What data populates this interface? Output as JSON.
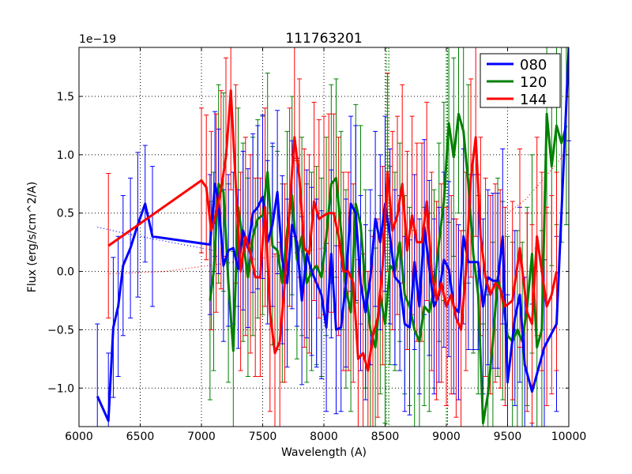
{
  "chart_data": {
    "type": "line",
    "title": "111763201",
    "xlabel": "Wavelength (A)",
    "ylabel": "Flux (erg/s/cm^2/A)",
    "offset_text": "1e−19",
    "xlim": [
      6000,
      10000
    ],
    "ylim": [
      -1.33,
      1.92
    ],
    "x_ticks": [
      6000,
      6500,
      7000,
      7500,
      8000,
      8500,
      9000,
      9500,
      10000
    ],
    "x_tick_labels": [
      "6000",
      "6500",
      "7000",
      "7500",
      "8000",
      "8500",
      "9000",
      "9500",
      "10000"
    ],
    "y_ticks": [
      -1.0,
      -0.5,
      0.0,
      0.5,
      1.0,
      1.5
    ],
    "y_tick_labels": [
      "−1.0",
      "−0.5",
      "0.0",
      "0.5",
      "1.0",
      "1.5"
    ],
    "grid": true,
    "legend_position": "top-right",
    "series": [
      {
        "name": "080",
        "color": "#0000ff",
        "x": [
          6150,
          6240,
          6280,
          6320,
          6360,
          6420,
          6480,
          6540,
          6600,
          7070,
          7110,
          7140,
          7180,
          7220,
          7260,
          7300,
          7340,
          7380,
          7420,
          7460,
          7500,
          7540,
          7580,
          7620,
          7660,
          7700,
          7740,
          7780,
          7820,
          7860,
          7900,
          7940,
          7980,
          8020,
          8060,
          8100,
          8140,
          8180,
          8220,
          8260,
          8300,
          8340,
          8380,
          8420,
          8460,
          8500,
          8540,
          8580,
          8620,
          8660,
          8700,
          8740,
          8780,
          8820,
          8860,
          8900,
          8940,
          8980,
          9020,
          9060,
          9100,
          9140,
          9180,
          9220,
          9260,
          9300,
          9340,
          9380,
          9420,
          9460,
          9500,
          9560,
          9600,
          9640,
          9700,
          9800,
          9900,
          10000
        ],
        "y": [
          -1.07,
          -1.28,
          -0.48,
          -0.3,
          0.05,
          0.2,
          0.4,
          0.58,
          0.3,
          0.23,
          0.75,
          0.6,
          0.05,
          0.18,
          0.2,
          0.02,
          0.35,
          0.2,
          0.5,
          0.55,
          0.64,
          0.25,
          0.4,
          0.68,
          0.1,
          -0.1,
          0.4,
          0.25,
          -0.25,
          0.15,
          0.0,
          -0.1,
          -0.2,
          -0.48,
          0.15,
          -0.5,
          -0.48,
          -0.1,
          0.58,
          0.5,
          -0.1,
          -0.35,
          -0.05,
          0.45,
          0.25,
          0.58,
          0.3,
          -0.05,
          -0.1,
          -0.45,
          -0.48,
          0.08,
          -0.3,
          0.38,
          0.03,
          -0.3,
          -0.2,
          0.1,
          0.02,
          -0.3,
          -0.35,
          0.3,
          0.08,
          0.08,
          0.08,
          -0.3,
          -0.05,
          -0.08,
          -0.08,
          0.3,
          -0.95,
          -0.4,
          -0.2,
          -0.8,
          -1.03,
          -0.65,
          -0.45,
          1.92
        ],
        "err": [
          0.62,
          0.58,
          0.6,
          0.6,
          0.6,
          0.6,
          0.62,
          0.5,
          0.6,
          0.6,
          0.62,
          0.62,
          0.65,
          0.65,
          0.65,
          0.68,
          0.68,
          0.68,
          0.68,
          0.7,
          0.7,
          0.7,
          0.7,
          0.7,
          0.72,
          0.72,
          0.72,
          0.72,
          0.72,
          0.72,
          0.72,
          0.72,
          0.72,
          0.72,
          0.72,
          0.72,
          0.72,
          0.72,
          0.75,
          0.75,
          0.75,
          0.75,
          0.75,
          0.75,
          0.75,
          0.75,
          0.75,
          0.75,
          0.75,
          0.75,
          0.75,
          0.75,
          0.75,
          0.75,
          0.75,
          0.75,
          0.75,
          0.75,
          0.75,
          0.75,
          0.75,
          0.75,
          0.75,
          0.75,
          0.75,
          0.75,
          0.75,
          0.75,
          0.75,
          0.75,
          0.75,
          0.75,
          0.75,
          0.75,
          0.75,
          0.75,
          0.75,
          0.8
        ]
      },
      {
        "name": "120",
        "color": "#008000",
        "x": [
          7070,
          7100,
          7140,
          7180,
          7220,
          7260,
          7300,
          7340,
          7380,
          7420,
          7460,
          7500,
          7540,
          7580,
          7620,
          7660,
          7700,
          7740,
          7780,
          7820,
          7860,
          7900,
          7940,
          7980,
          8020,
          8060,
          8100,
          8140,
          8180,
          8220,
          8260,
          8300,
          8340,
          8380,
          8420,
          8460,
          8500,
          8540,
          8580,
          8620,
          8660,
          8700,
          8740,
          8780,
          8820,
          8860,
          8900,
          8940,
          8980,
          9020,
          9060,
          9100,
          9140,
          9180,
          9220,
          9260,
          9300,
          9340,
          9380,
          9420,
          9460,
          9500,
          9540,
          9580,
          9620,
          9660,
          9700,
          9740,
          9780,
          9820,
          9860,
          9900,
          9940,
          9980
        ],
        "y": [
          -0.25,
          0.0,
          0.75,
          0.68,
          -0.1,
          -0.68,
          0.55,
          0.25,
          -0.05,
          0.3,
          0.45,
          0.48,
          0.85,
          0.22,
          0.18,
          -0.1,
          0.35,
          0.65,
          0.1,
          0.3,
          -0.1,
          0.0,
          0.05,
          -0.05,
          0.3,
          0.75,
          0.8,
          0.35,
          -0.15,
          -0.35,
          0.58,
          0.4,
          -0.15,
          -0.5,
          -0.65,
          -0.2,
          -0.45,
          0.05,
          0.0,
          0.25,
          -0.2,
          -0.3,
          -0.5,
          -0.6,
          -0.3,
          -0.35,
          -0.15,
          0.25,
          0.6,
          1.27,
          0.98,
          1.35,
          1.2,
          0.75,
          0.15,
          -0.2,
          -1.3,
          -1.05,
          -0.6,
          -0.05,
          -0.25,
          -0.55,
          -0.6,
          -0.5,
          -0.6,
          -0.3,
          0.15,
          -0.65,
          -0.5,
          1.35,
          0.9,
          1.25,
          1.1,
          1.25
        ],
        "err": [
          0.85,
          0.85,
          0.85,
          0.85,
          0.85,
          0.85,
          0.85,
          0.85,
          0.85,
          0.85,
          0.85,
          0.85,
          0.85,
          0.85,
          0.85,
          0.85,
          0.85,
          0.85,
          0.85,
          0.85,
          0.85,
          0.85,
          0.85,
          0.85,
          0.85,
          0.85,
          0.85,
          0.85,
          0.85,
          0.85,
          0.85,
          0.85,
          0.85,
          0.85,
          0.85,
          0.85,
          0.85,
          0.85,
          0.85,
          0.85,
          0.85,
          0.85,
          0.85,
          0.85,
          0.85,
          0.85,
          0.85,
          0.85,
          0.85,
          0.85,
          0.85,
          0.85,
          0.85,
          0.85,
          0.85,
          0.85,
          0.85,
          0.85,
          0.85,
          0.85,
          0.85,
          0.85,
          0.85,
          0.85,
          0.85,
          0.85,
          0.85,
          0.85,
          0.85,
          0.85,
          0.85,
          0.85,
          0.85,
          0.85
        ]
      },
      {
        "name": "144",
        "color": "#ff0000",
        "x": [
          6240,
          7000,
          7040,
          7080,
          7120,
          7160,
          7200,
          7240,
          7280,
          7320,
          7360,
          7400,
          7440,
          7480,
          7520,
          7560,
          7600,
          7640,
          7680,
          7720,
          7760,
          7800,
          7840,
          7880,
          7920,
          7960,
          8000,
          8040,
          8080,
          8120,
          8160,
          8200,
          8240,
          8280,
          8320,
          8360,
          8400,
          8440,
          8480,
          8520,
          8560,
          8600,
          8640,
          8680,
          8720,
          8760,
          8800,
          8840,
          8880,
          8920,
          8960,
          9000,
          9040,
          9080,
          9120,
          9160,
          9200,
          9240,
          9280,
          9320,
          9360,
          9400,
          9440,
          9480,
          9540,
          9600,
          9660,
          9700,
          9740,
          9780,
          9820,
          9860,
          9900
        ],
        "y": [
          0.22,
          0.78,
          0.72,
          0.35,
          0.5,
          0.7,
          0.98,
          1.55,
          0.75,
          0.0,
          0.3,
          0.15,
          -0.05,
          -0.05,
          0.55,
          -0.35,
          -0.7,
          -0.6,
          -0.1,
          0.55,
          1.15,
          0.8,
          0.2,
          0.15,
          0.6,
          0.45,
          0.48,
          0.5,
          0.5,
          0.3,
          0.0,
          0.0,
          -0.1,
          -0.75,
          -0.7,
          -0.85,
          -0.55,
          -0.4,
          0.05,
          0.85,
          0.35,
          0.48,
          0.75,
          0.18,
          0.48,
          0.25,
          0.25,
          0.6,
          0.0,
          -0.25,
          -0.1,
          -0.3,
          -0.2,
          -0.4,
          -0.5,
          0.0,
          0.8,
          1.15,
          0.3,
          -0.05,
          -0.2,
          -0.1,
          -0.15,
          -0.3,
          -0.25,
          0.2,
          -0.35,
          -0.45,
          0.3,
          0.0,
          -0.3,
          -0.2,
          0.0
        ],
        "err": [
          0.62,
          0.62,
          0.62,
          0.85,
          0.85,
          0.85,
          0.85,
          0.85,
          0.85,
          0.85,
          0.85,
          0.85,
          0.85,
          0.85,
          0.85,
          0.85,
          0.85,
          0.85,
          0.85,
          0.85,
          0.85,
          0.85,
          0.85,
          0.85,
          0.85,
          0.85,
          0.85,
          0.85,
          0.85,
          0.85,
          0.85,
          0.85,
          0.85,
          0.85,
          0.85,
          0.85,
          0.85,
          0.85,
          0.85,
          0.85,
          0.85,
          0.85,
          0.85,
          0.85,
          0.85,
          0.85,
          0.85,
          0.85,
          0.85,
          0.85,
          0.85,
          0.85,
          0.85,
          0.85,
          0.85,
          0.85,
          0.85,
          0.85,
          0.85,
          0.85,
          0.85,
          0.85,
          0.85,
          0.85,
          0.85,
          0.85,
          0.85,
          0.85,
          0.85,
          0.85,
          0.85,
          0.85,
          0.85
        ]
      }
    ],
    "fit_lines": [
      {
        "color": "#0000ff",
        "x": [
          6150,
          6400,
          6700,
          7000,
          7100
        ],
        "y": [
          0.38,
          0.32,
          0.26,
          0.2,
          0.18
        ]
      },
      {
        "color": "#ff0000",
        "x": [
          6250,
          6700,
          7200,
          7600,
          8000
        ],
        "y": [
          -0.02,
          0.0,
          0.07,
          0.13,
          0.2
        ]
      },
      {
        "color": "#ff0000",
        "x": [
          9500,
          9650,
          9800,
          10000
        ],
        "y": [
          0.5,
          0.62,
          0.8,
          1.05
        ]
      }
    ],
    "vlines": [
      {
        "x": 8510,
        "color": "#008000"
      },
      {
        "x": 8530,
        "color": "#008000"
      },
      {
        "x": 9000,
        "color": "#008000"
      },
      {
        "x": 9010,
        "color": "#008000"
      }
    ]
  }
}
